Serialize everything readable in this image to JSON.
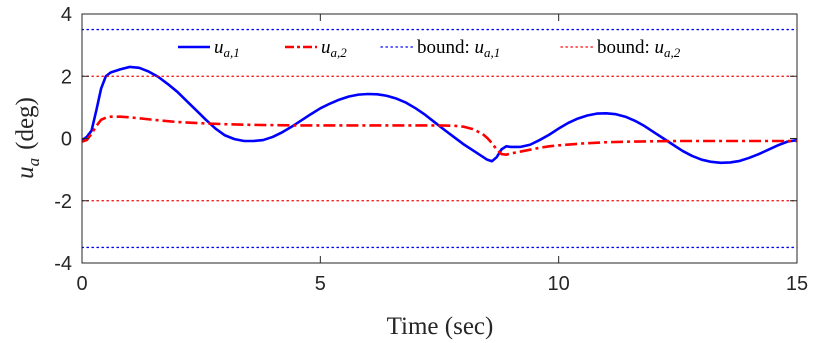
{
  "chart_data": {
    "type": "line",
    "xlabel": "Time (sec)",
    "ylabel": "u",
    "ylabel_sub": "a",
    "ylabel_unit": "(deg)",
    "xlim": [
      0,
      15
    ],
    "ylim": [
      -4,
      4
    ],
    "xticks": [
      0,
      5,
      10,
      15
    ],
    "yticks": [
      -4,
      -2,
      0,
      2,
      4
    ],
    "grid": false,
    "legend_position": "top",
    "series": [
      {
        "name": "u_{a,1}",
        "legend_main": "u",
        "legend_sub": "a,1",
        "color": "#0000ff",
        "style": "solid",
        "x": [
          0,
          0.1,
          0.2,
          0.3,
          0.4,
          0.5,
          0.6,
          0.8,
          1.0,
          1.2,
          1.4,
          1.6,
          1.8,
          2.0,
          2.2,
          2.4,
          2.6,
          2.8,
          3.0,
          3.2,
          3.4,
          3.6,
          3.8,
          4.0,
          4.2,
          4.4,
          4.6,
          4.8,
          5.0,
          5.2,
          5.4,
          5.6,
          5.8,
          6.0,
          6.2,
          6.4,
          6.6,
          6.8,
          7.0,
          7.2,
          7.4,
          7.6,
          7.8,
          8.0,
          8.2,
          8.4,
          8.5,
          8.6,
          8.7,
          8.8,
          8.9,
          9.0,
          9.2,
          9.4,
          9.6,
          9.8,
          10.0,
          10.2,
          10.4,
          10.6,
          10.8,
          11.0,
          11.2,
          11.4,
          11.6,
          11.8,
          12.0,
          12.2,
          12.4,
          12.6,
          12.8,
          13.0,
          13.2,
          13.4,
          13.6,
          13.8,
          14.0,
          14.2,
          14.4,
          14.6,
          14.8,
          15.0
        ],
        "values": [
          -0.05,
          0.05,
          0.25,
          0.9,
          1.6,
          2.0,
          2.12,
          2.22,
          2.3,
          2.27,
          2.15,
          1.98,
          1.75,
          1.5,
          1.2,
          0.9,
          0.6,
          0.32,
          0.1,
          -0.02,
          -0.08,
          -0.08,
          -0.05,
          0.05,
          0.2,
          0.38,
          0.58,
          0.78,
          0.97,
          1.12,
          1.25,
          1.35,
          1.41,
          1.43,
          1.42,
          1.37,
          1.28,
          1.15,
          0.97,
          0.76,
          0.52,
          0.28,
          0.05,
          -0.18,
          -0.38,
          -0.58,
          -0.68,
          -0.73,
          -0.6,
          -0.35,
          -0.25,
          -0.27,
          -0.27,
          -0.2,
          -0.05,
          0.12,
          0.32,
          0.5,
          0.64,
          0.74,
          0.8,
          0.81,
          0.78,
          0.7,
          0.57,
          0.4,
          0.2,
          0.0,
          -0.2,
          -0.4,
          -0.56,
          -0.68,
          -0.75,
          -0.78,
          -0.77,
          -0.72,
          -0.62,
          -0.5,
          -0.36,
          -0.22,
          -0.1,
          -0.05
        ]
      },
      {
        "name": "u_{a,2}",
        "legend_main": "u",
        "legend_sub": "a,2",
        "color": "#ff0000",
        "style": "dashdot",
        "x": [
          0,
          0.1,
          0.2,
          0.3,
          0.4,
          0.5,
          0.6,
          0.8,
          1.0,
          1.2,
          1.5,
          2.0,
          2.5,
          3.0,
          3.5,
          4.0,
          4.5,
          5.0,
          5.5,
          6.0,
          6.5,
          7.0,
          7.5,
          7.8,
          8.0,
          8.2,
          8.4,
          8.5,
          8.6,
          8.7,
          8.8,
          8.9,
          9.0,
          9.2,
          9.4,
          9.6,
          9.8,
          10.0,
          10.5,
          11.0,
          11.5,
          12.0,
          12.5,
          13.0,
          13.5,
          14.0,
          14.5,
          15.0
        ],
        "values": [
          -0.1,
          -0.05,
          0.15,
          0.4,
          0.6,
          0.67,
          0.7,
          0.7,
          0.68,
          0.65,
          0.6,
          0.53,
          0.49,
          0.46,
          0.44,
          0.43,
          0.42,
          0.42,
          0.42,
          0.42,
          0.42,
          0.42,
          0.42,
          0.41,
          0.38,
          0.3,
          0.15,
          0.02,
          -0.15,
          -0.35,
          -0.5,
          -0.52,
          -0.48,
          -0.42,
          -0.36,
          -0.3,
          -0.25,
          -0.22,
          -0.16,
          -0.12,
          -0.1,
          -0.09,
          -0.08,
          -0.08,
          -0.08,
          -0.08,
          -0.08,
          -0.08
        ]
      },
      {
        "name": "bound: u_{a,1}",
        "legend_prefix": "bound: ",
        "legend_main": "u",
        "legend_sub": "a,1",
        "color": "#0000ff",
        "style": "dotted",
        "x": [
          0,
          15
        ],
        "values": [
          3.5,
          3.5
        ]
      },
      {
        "name": "bound: u_{a,1}",
        "legend_hidden": true,
        "color": "#0000ff",
        "style": "dotted",
        "x": [
          0,
          15
        ],
        "values": [
          -3.5,
          -3.5
        ]
      },
      {
        "name": "bound: u_{a,2}",
        "legend_prefix": "bound: ",
        "legend_main": "u",
        "legend_sub": "a,2",
        "color": "#ff0000",
        "style": "dotted",
        "x": [
          0,
          15
        ],
        "values": [
          2,
          2
        ]
      },
      {
        "name": "bound: u_{a,2}",
        "legend_hidden": true,
        "color": "#ff0000",
        "style": "dotted",
        "x": [
          0,
          15
        ],
        "values": [
          -2,
          -2
        ]
      }
    ]
  }
}
